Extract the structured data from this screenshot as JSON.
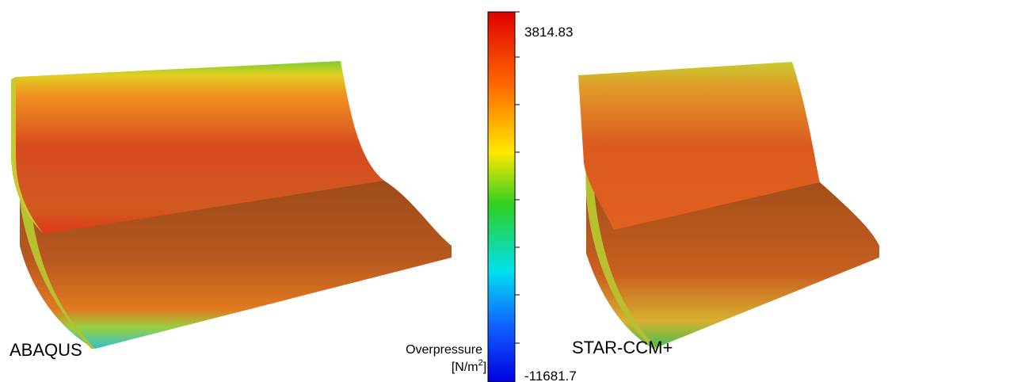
{
  "panels": [
    {
      "label": "ABAQUS"
    },
    {
      "label": "STAR-CCM+"
    }
  ],
  "colorbar": {
    "title": "Overpressure",
    "unit": "[N/m",
    "unit_exponent": "2",
    "unit_close": "]",
    "max_label": "3814.83",
    "min_label": "-11681.7"
  }
}
